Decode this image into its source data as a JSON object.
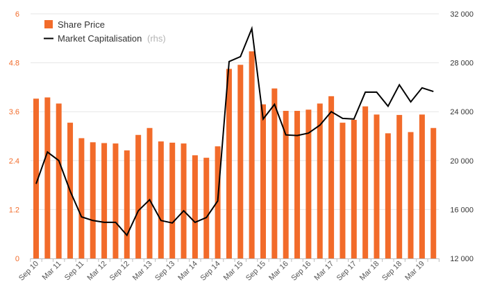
{
  "chart_data": {
    "type": "bar+line",
    "title": "",
    "legend": {
      "placement": "top-left",
      "bar_label": "Share Price",
      "line_label": "Market Capitalisation",
      "line_note": "(rhs)"
    },
    "colors": {
      "bar": "#f26b2a",
      "line": "#000000",
      "grid": "#e6e6e6",
      "left_ticks": "#f26b2a",
      "right_ticks": "#333333",
      "x_ticks": "#555555"
    },
    "grid": true,
    "y_left": {
      "min": 0,
      "max": 6,
      "ticks": [
        "0",
        "1.2",
        "2.4",
        "3.6",
        "4.8",
        "6"
      ]
    },
    "y_right": {
      "min": 12000,
      "max": 32000,
      "ticks": [
        "12 000",
        "16 000",
        "20 000",
        "24 000",
        "28 000",
        "32 000"
      ]
    },
    "x_tick_labels": [
      "Sep 10",
      "Mar 11",
      "Sep 11",
      "Mar 12",
      "Sep 12",
      "Mar 13",
      "Sep 13",
      "Mar 14",
      "Sep 14",
      "Mar 15",
      "Sep 15",
      "Mar 16",
      "Sep 16",
      "Mar 17",
      "Sep 17",
      "Mar 18",
      "Sep 18",
      "Mar 19"
    ],
    "share_price": [
      3.92,
      3.95,
      3.8,
      3.33,
      2.95,
      2.85,
      2.83,
      2.82,
      2.65,
      3.03,
      3.2,
      2.87,
      2.84,
      2.82,
      2.53,
      2.47,
      2.75,
      4.65,
      4.75,
      5.08,
      3.78,
      4.17,
      3.62,
      3.62,
      3.65,
      3.8,
      3.98,
      3.33,
      3.4,
      3.73,
      3.53,
      3.07,
      3.52,
      3.1,
      3.53,
      3.2
    ],
    "market_cap": [
      18100,
      20700,
      20000,
      17500,
      15400,
      15100,
      14950,
      14950,
      13900,
      15900,
      16800,
      15100,
      14900,
      15900,
      14950,
      15350,
      16700,
      28100,
      28500,
      30800,
      23400,
      24600,
      22100,
      22050,
      22250,
      22900,
      24000,
      23450,
      23400,
      25600,
      25600,
      24450,
      26200,
      24800,
      25950,
      25650
    ]
  }
}
